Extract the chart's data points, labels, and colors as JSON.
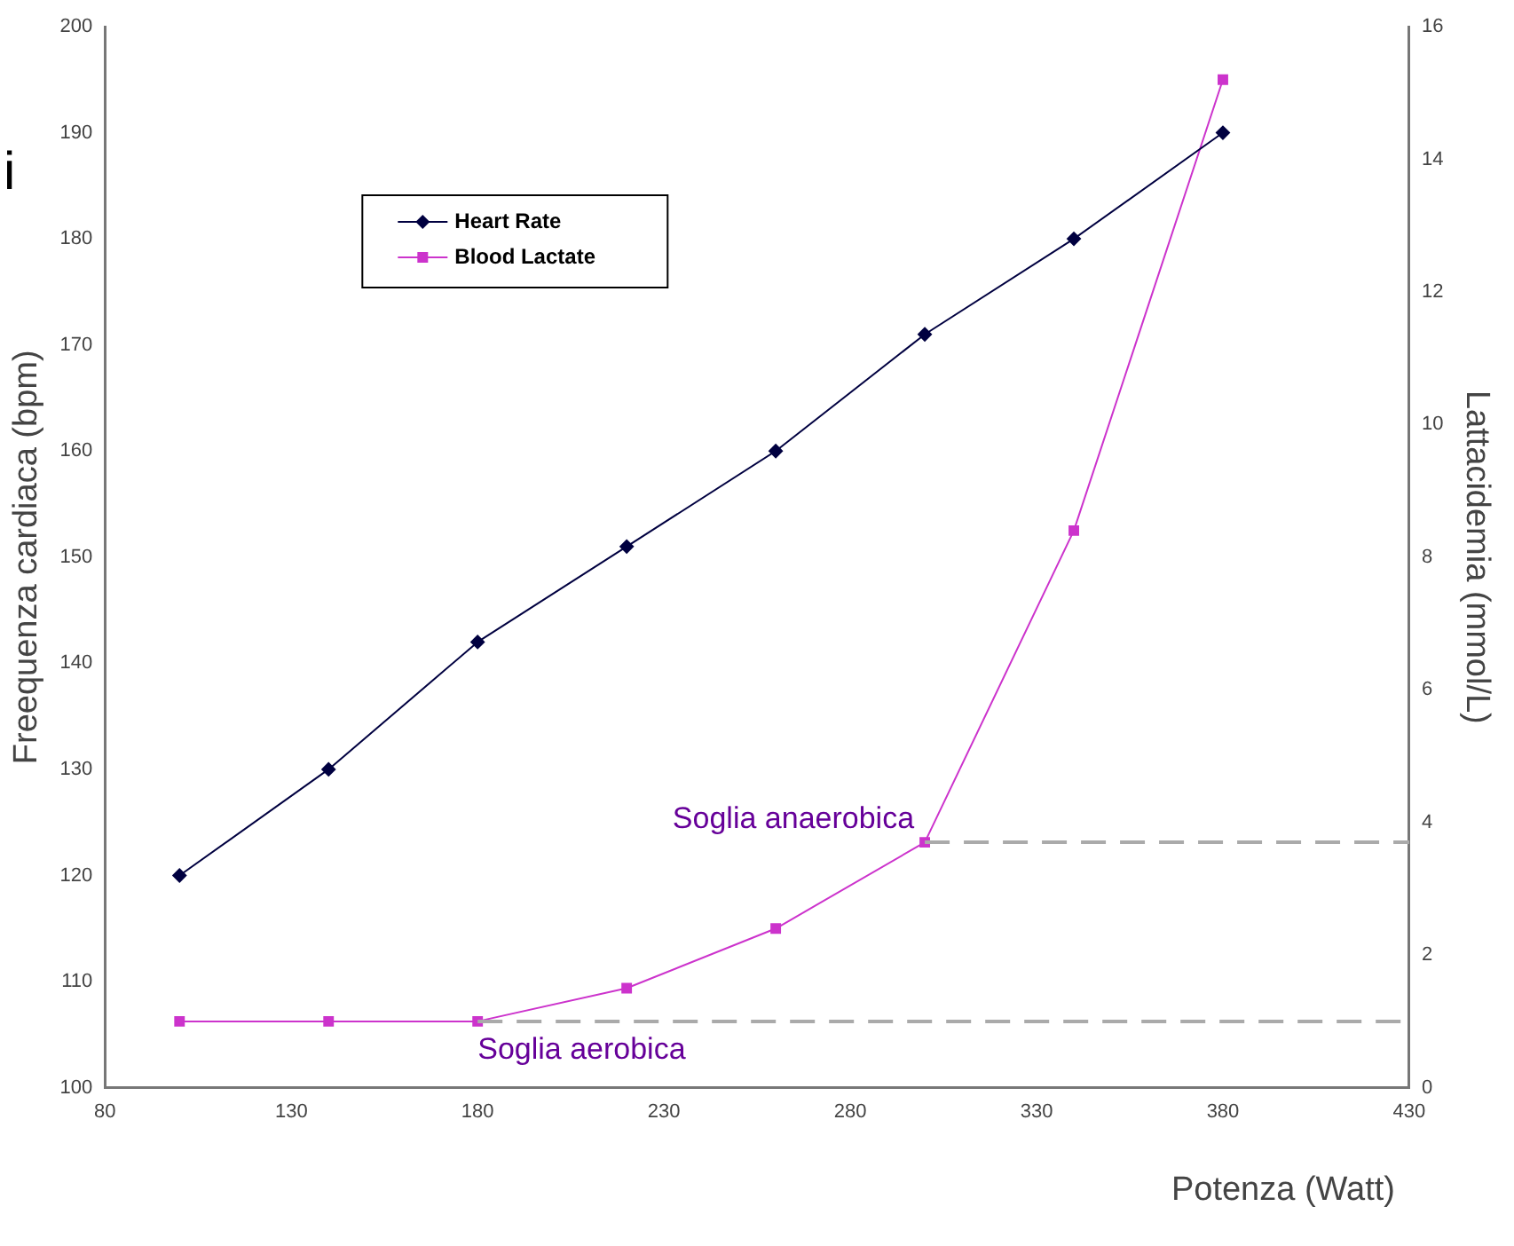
{
  "chart_data": {
    "type": "line",
    "x": [
      100,
      140,
      180,
      220,
      260,
      300,
      340,
      380
    ],
    "series": [
      {
        "name": "Heart Rate",
        "color": "#000040",
        "marker": "diamond",
        "values": [
          120,
          130,
          142,
          151,
          160,
          171,
          180,
          190
        ]
      },
      {
        "name": "Blood Lactate",
        "color": "#cc33cc",
        "marker": "square",
        "axis": "y2",
        "values": [
          1.0,
          1.0,
          1.0,
          1.5,
          2.4,
          3.7,
          8.4,
          15.2
        ]
      }
    ],
    "xlabel": "Potenza (Watt)",
    "ylabel": "Freequenza cardiaca (bpm)",
    "y2label": "Lattacidemia (mmol/L)",
    "xlim": [
      80,
      430
    ],
    "xticks": [
      80,
      130,
      180,
      230,
      280,
      330,
      380,
      430
    ],
    "ylim": [
      100,
      200
    ],
    "yticks": [
      100,
      110,
      120,
      130,
      140,
      150,
      160,
      170,
      180,
      190,
      200
    ],
    "y2lim": [
      0,
      16
    ],
    "y2ticks": [
      0,
      2,
      4,
      6,
      8,
      10,
      12,
      14,
      16
    ],
    "ref_lines": [
      {
        "axis": "y2",
        "value": 1.0,
        "label": "Soglia aerobica",
        "color": "#aaaaaa",
        "line_style": "dashed"
      },
      {
        "axis": "y2",
        "value": 3.7,
        "label": "Soglia anaerobica",
        "color": "#aaaaaa",
        "line_style": "dashed"
      }
    ],
    "annotations": [
      "i"
    ],
    "grid": false,
    "legend": "top left",
    "line_style": "solid"
  }
}
